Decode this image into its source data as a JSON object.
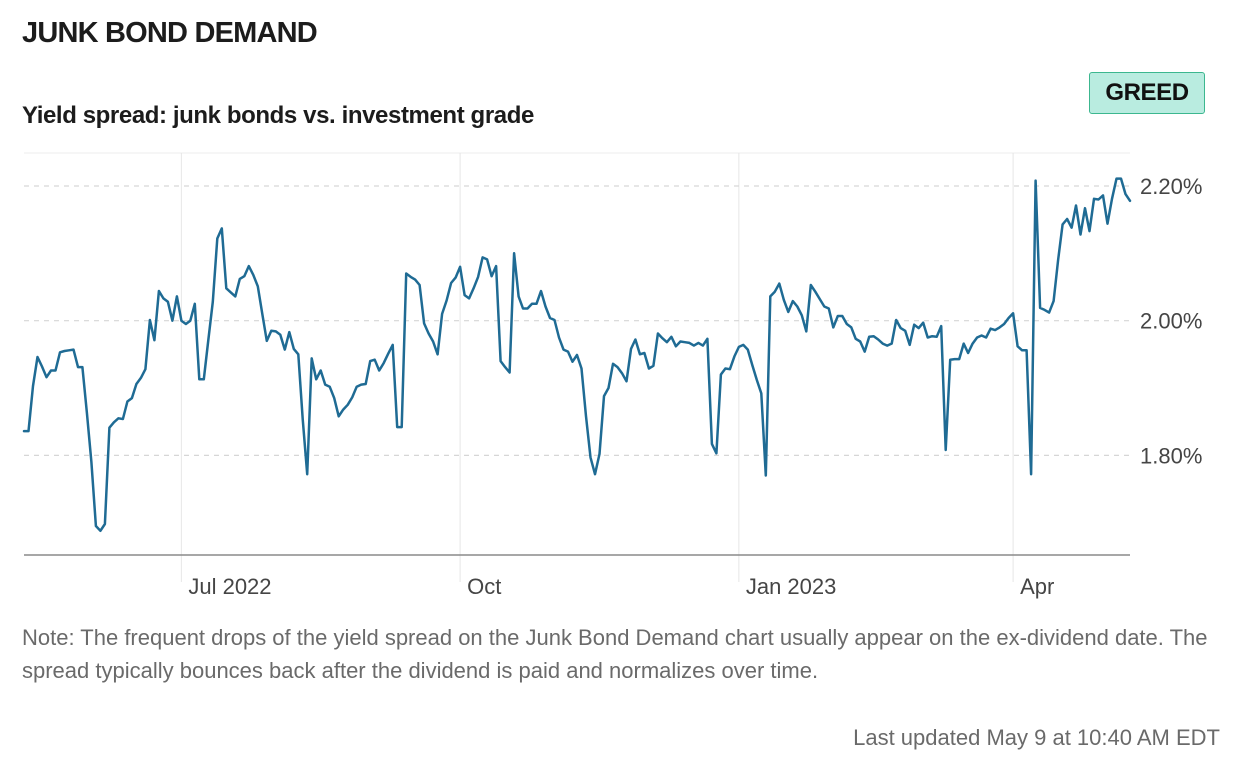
{
  "header": {
    "title": "JUNK BOND DEMAND",
    "subtitle": "Yield spread: junk bonds vs. investment grade",
    "badge": "GREED",
    "badge_color": "#b9ece0",
    "badge_border_color": "#3cb78f"
  },
  "footer": {
    "note": "Note: The frequent drops of the yield spread on the Junk Bond Demand chart usually appear on the ex-dividend date. The spread typically bounces back after the dividend is paid and normalizes over time.",
    "last_updated": "Last updated May 9 at 10:40 AM EDT"
  },
  "chart_data": {
    "type": "line",
    "x_unit": "trading day (approximate sequence, May 2022 – May 2023)",
    "x_ticks": [
      {
        "label": "Jul 2022",
        "x": 35
      },
      {
        "label": "Oct",
        "x": 97
      },
      {
        "label": "Jan 2023",
        "x": 159
      },
      {
        "label": "Apr",
        "x": 220
      }
    ],
    "y_ticks": [
      {
        "label": "2.20%",
        "value": 2.2
      },
      {
        "label": "2.00%",
        "value": 2.0
      },
      {
        "label": "1.80%",
        "value": 1.8
      }
    ],
    "xlim": [
      0,
      246
    ],
    "ylim": [
      1.652,
      2.249
    ],
    "grid": true,
    "line_color": "#1f6b94",
    "series": [
      {
        "name": "",
        "values": [
          [
            0,
            1.836
          ],
          [
            1,
            1.836
          ],
          [
            2,
            1.903
          ],
          [
            3,
            1.946
          ],
          [
            4,
            1.932
          ],
          [
            5,
            1.916
          ],
          [
            6,
            1.926
          ],
          [
            7,
            1.926
          ],
          [
            8,
            1.953
          ],
          [
            9,
            1.955
          ],
          [
            10,
            1.956
          ],
          [
            11,
            1.957
          ],
          [
            12,
            1.931
          ],
          [
            13,
            1.931
          ],
          [
            14,
            1.863
          ],
          [
            15,
            1.79
          ],
          [
            16,
            1.695
          ],
          [
            17,
            1.688
          ],
          [
            18,
            1.698
          ],
          [
            19,
            1.841
          ],
          [
            20,
            1.849
          ],
          [
            21,
            1.855
          ],
          [
            22,
            1.854
          ],
          [
            23,
            1.88
          ],
          [
            24,
            1.885
          ],
          [
            25,
            1.906
          ],
          [
            26,
            1.915
          ],
          [
            27,
            1.928
          ],
          [
            28,
            2.001
          ],
          [
            29,
            1.971
          ],
          [
            30,
            2.044
          ],
          [
            31,
            2.033
          ],
          [
            32,
            2.028
          ],
          [
            33,
            2.0
          ],
          [
            34,
            2.036
          ],
          [
            35,
            2.0
          ],
          [
            36,
            1.995
          ],
          [
            37,
            2.0
          ],
          [
            38,
            2.025
          ],
          [
            39,
            1.913
          ],
          [
            40,
            1.913
          ],
          [
            41,
            1.971
          ],
          [
            42,
            2.028
          ],
          [
            43,
            2.122
          ],
          [
            44,
            2.137
          ],
          [
            45,
            2.048
          ],
          [
            46,
            2.042
          ],
          [
            47,
            2.036
          ],
          [
            48,
            2.062
          ],
          [
            49,
            2.066
          ],
          [
            50,
            2.081
          ],
          [
            51,
            2.068
          ],
          [
            52,
            2.051
          ],
          [
            53,
            2.01
          ],
          [
            54,
            1.97
          ],
          [
            55,
            1.985
          ],
          [
            56,
            1.984
          ],
          [
            57,
            1.979
          ],
          [
            58,
            1.957
          ],
          [
            59,
            1.983
          ],
          [
            60,
            1.958
          ],
          [
            61,
            1.95
          ],
          [
            62,
            1.854
          ],
          [
            63,
            1.772
          ],
          [
            64,
            1.944
          ],
          [
            65,
            1.913
          ],
          [
            66,
            1.926
          ],
          [
            67,
            1.905
          ],
          [
            68,
            1.902
          ],
          [
            69,
            1.885
          ],
          [
            70,
            1.858
          ],
          [
            71,
            1.868
          ],
          [
            72,
            1.875
          ],
          [
            73,
            1.886
          ],
          [
            74,
            1.902
          ],
          [
            75,
            1.905
          ],
          [
            76,
            1.906
          ],
          [
            77,
            1.94
          ],
          [
            78,
            1.942
          ],
          [
            79,
            1.926
          ],
          [
            80,
            1.937
          ],
          [
            81,
            1.951
          ],
          [
            82,
            1.964
          ],
          [
            83,
            1.842
          ],
          [
            84,
            1.842
          ],
          [
            85,
            2.07
          ],
          [
            86,
            2.065
          ],
          [
            87,
            2.061
          ],
          [
            88,
            2.053
          ],
          [
            89,
            1.996
          ],
          [
            90,
            1.981
          ],
          [
            91,
            1.969
          ],
          [
            92,
            1.95
          ],
          [
            93,
            2.01
          ],
          [
            94,
            2.03
          ],
          [
            95,
            2.056
          ],
          [
            96,
            2.064
          ],
          [
            97,
            2.08
          ],
          [
            98,
            2.038
          ],
          [
            99,
            2.033
          ],
          [
            100,
            2.048
          ],
          [
            101,
            2.065
          ],
          [
            102,
            2.094
          ],
          [
            103,
            2.091
          ],
          [
            104,
            2.066
          ],
          [
            105,
            2.081
          ],
          [
            106,
            1.94
          ],
          [
            107,
            1.931
          ],
          [
            108,
            1.923
          ],
          [
            109,
            2.1
          ],
          [
            110,
            2.036
          ],
          [
            111,
            2.018
          ],
          [
            112,
            2.018
          ],
          [
            113,
            2.025
          ],
          [
            114,
            2.025
          ],
          [
            115,
            2.044
          ],
          [
            116,
            2.021
          ],
          [
            117,
            2.004
          ],
          [
            118,
            2.001
          ],
          [
            119,
            1.975
          ],
          [
            120,
            1.957
          ],
          [
            121,
            1.954
          ],
          [
            122,
            1.939
          ],
          [
            123,
            1.949
          ],
          [
            124,
            1.929
          ],
          [
            125,
            1.858
          ],
          [
            126,
            1.797
          ],
          [
            127,
            1.772
          ],
          [
            128,
            1.802
          ],
          [
            129,
            1.888
          ],
          [
            130,
            1.9
          ],
          [
            131,
            1.936
          ],
          [
            132,
            1.931
          ],
          [
            133,
            1.922
          ],
          [
            134,
            1.91
          ],
          [
            135,
            1.958
          ],
          [
            136,
            1.972
          ],
          [
            137,
            1.95
          ],
          [
            138,
            1.952
          ],
          [
            139,
            1.929
          ],
          [
            140,
            1.933
          ],
          [
            141,
            1.981
          ],
          [
            142,
            1.974
          ],
          [
            143,
            1.968
          ],
          [
            144,
            1.976
          ],
          [
            145,
            1.962
          ],
          [
            146,
            1.969
          ],
          [
            147,
            1.968
          ],
          [
            148,
            1.967
          ],
          [
            149,
            1.963
          ],
          [
            150,
            1.967
          ],
          [
            151,
            1.963
          ],
          [
            152,
            1.973
          ],
          [
            153,
            1.817
          ],
          [
            154,
            1.803
          ],
          [
            155,
            1.92
          ],
          [
            156,
            1.929
          ],
          [
            157,
            1.928
          ],
          [
            158,
            1.947
          ],
          [
            159,
            1.961
          ],
          [
            160,
            1.964
          ],
          [
            161,
            1.957
          ],
          [
            162,
            1.934
          ],
          [
            163,
            1.912
          ],
          [
            164,
            1.892
          ],
          [
            165,
            1.77
          ],
          [
            166,
            2.036
          ],
          [
            167,
            2.043
          ],
          [
            168,
            2.055
          ],
          [
            169,
            2.031
          ],
          [
            170,
            2.013
          ],
          [
            171,
            2.029
          ],
          [
            172,
            2.021
          ],
          [
            173,
            2.008
          ],
          [
            174,
            1.984
          ],
          [
            175,
            2.053
          ],
          [
            176,
            2.043
          ],
          [
            177,
            2.032
          ],
          [
            178,
            2.021
          ],
          [
            179,
            2.018
          ],
          [
            180,
            1.99
          ],
          [
            181,
            2.007
          ],
          [
            182,
            2.007
          ],
          [
            183,
            1.995
          ],
          [
            184,
            1.99
          ],
          [
            185,
            1.973
          ],
          [
            186,
            1.969
          ],
          [
            187,
            1.954
          ],
          [
            188,
            1.976
          ],
          [
            189,
            1.977
          ],
          [
            190,
            1.972
          ],
          [
            191,
            1.966
          ],
          [
            192,
            1.963
          ],
          [
            193,
            1.966
          ],
          [
            194,
            2.001
          ],
          [
            195,
            1.989
          ],
          [
            196,
            1.985
          ],
          [
            197,
            1.964
          ],
          [
            198,
            1.994
          ],
          [
            199,
            1.989
          ],
          [
            200,
            1.997
          ],
          [
            201,
            1.975
          ],
          [
            202,
            1.977
          ],
          [
            203,
            1.976
          ],
          [
            204,
            1.992
          ],
          [
            205,
            1.808
          ],
          [
            206,
            1.942
          ],
          [
            207,
            1.943
          ],
          [
            208,
            1.943
          ],
          [
            209,
            1.966
          ],
          [
            210,
            1.952
          ],
          [
            211,
            1.966
          ],
          [
            212,
            1.975
          ],
          [
            213,
            1.978
          ],
          [
            214,
            1.975
          ],
          [
            215,
            1.988
          ],
          [
            216,
            1.986
          ],
          [
            217,
            1.99
          ],
          [
            218,
            1.995
          ],
          [
            219,
            2.004
          ],
          [
            220,
            2.011
          ],
          [
            221,
            1.962
          ],
          [
            222,
            1.956
          ],
          [
            223,
            1.956
          ],
          [
            224,
            1.772
          ],
          [
            225,
            2.208
          ],
          [
            226,
            2.019
          ],
          [
            227,
            2.016
          ],
          [
            228,
            2.012
          ],
          [
            229,
            2.029
          ],
          [
            230,
            2.09
          ],
          [
            231,
            2.143
          ],
          [
            232,
            2.151
          ],
          [
            233,
            2.138
          ],
          [
            234,
            2.171
          ],
          [
            235,
            2.128
          ],
          [
            236,
            2.167
          ],
          [
            237,
            2.133
          ],
          [
            238,
            2.181
          ],
          [
            239,
            2.18
          ],
          [
            240,
            2.186
          ],
          [
            241,
            2.144
          ],
          [
            242,
            2.181
          ],
          [
            243,
            2.211
          ],
          [
            244,
            2.211
          ],
          [
            245,
            2.188
          ],
          [
            246,
            2.178
          ]
        ]
      }
    ]
  }
}
